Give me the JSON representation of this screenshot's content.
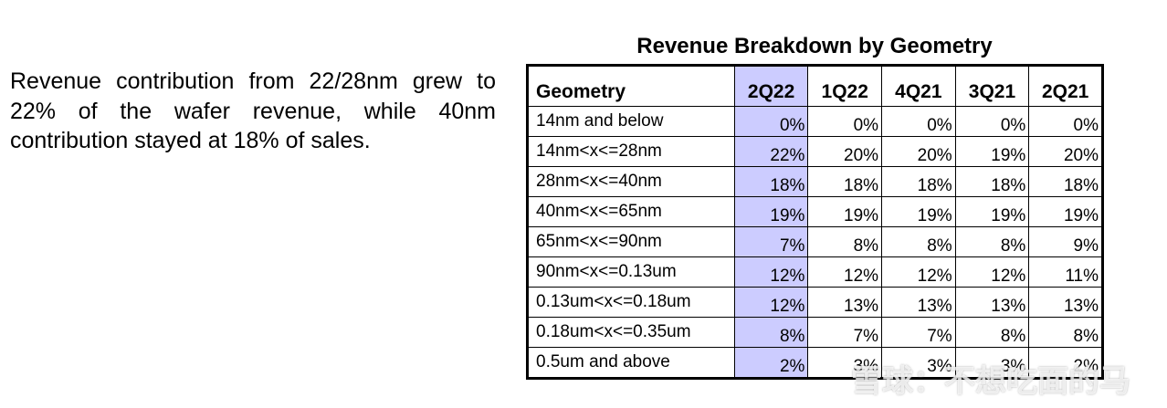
{
  "narrative": "Revenue contribution from 22/28nm grew to 22% of the wafer revenue, while 40nm contribution stayed at 18% of sales.",
  "table": {
    "title": "Revenue Breakdown by Geometry",
    "header": [
      "Geometry",
      "2Q22",
      "1Q22",
      "4Q21",
      "3Q21",
      "2Q21"
    ],
    "highlight_color": "#ccccff",
    "rows": [
      {
        "label": "14nm and below",
        "values": [
          "0%",
          "0%",
          "0%",
          "0%",
          "0%"
        ]
      },
      {
        "label": "14nm<x<=28nm",
        "values": [
          "22%",
          "20%",
          "20%",
          "19%",
          "20%"
        ]
      },
      {
        "label": "28nm<x<=40nm",
        "values": [
          "18%",
          "18%",
          "18%",
          "18%",
          "18%"
        ]
      },
      {
        "label": "40nm<x<=65nm",
        "values": [
          "19%",
          "19%",
          "19%",
          "19%",
          "19%"
        ]
      },
      {
        "label": "65nm<x<=90nm",
        "values": [
          "7%",
          "8%",
          "8%",
          "8%",
          "9%"
        ]
      },
      {
        "label": "90nm<x<=0.13um",
        "values": [
          "12%",
          "12%",
          "12%",
          "12%",
          "11%"
        ]
      },
      {
        "label": "0.13um<x<=0.18um",
        "values": [
          "12%",
          "13%",
          "13%",
          "13%",
          "13%"
        ]
      },
      {
        "label": "0.18um<x<=0.35um",
        "values": [
          "8%",
          "7%",
          "7%",
          "8%",
          "8%"
        ]
      },
      {
        "label": "0.5um and above",
        "values": [
          "2%",
          "3%",
          "3%",
          "3%",
          "2%"
        ]
      }
    ]
  },
  "watermark": "雪球：不想吃面的马"
}
